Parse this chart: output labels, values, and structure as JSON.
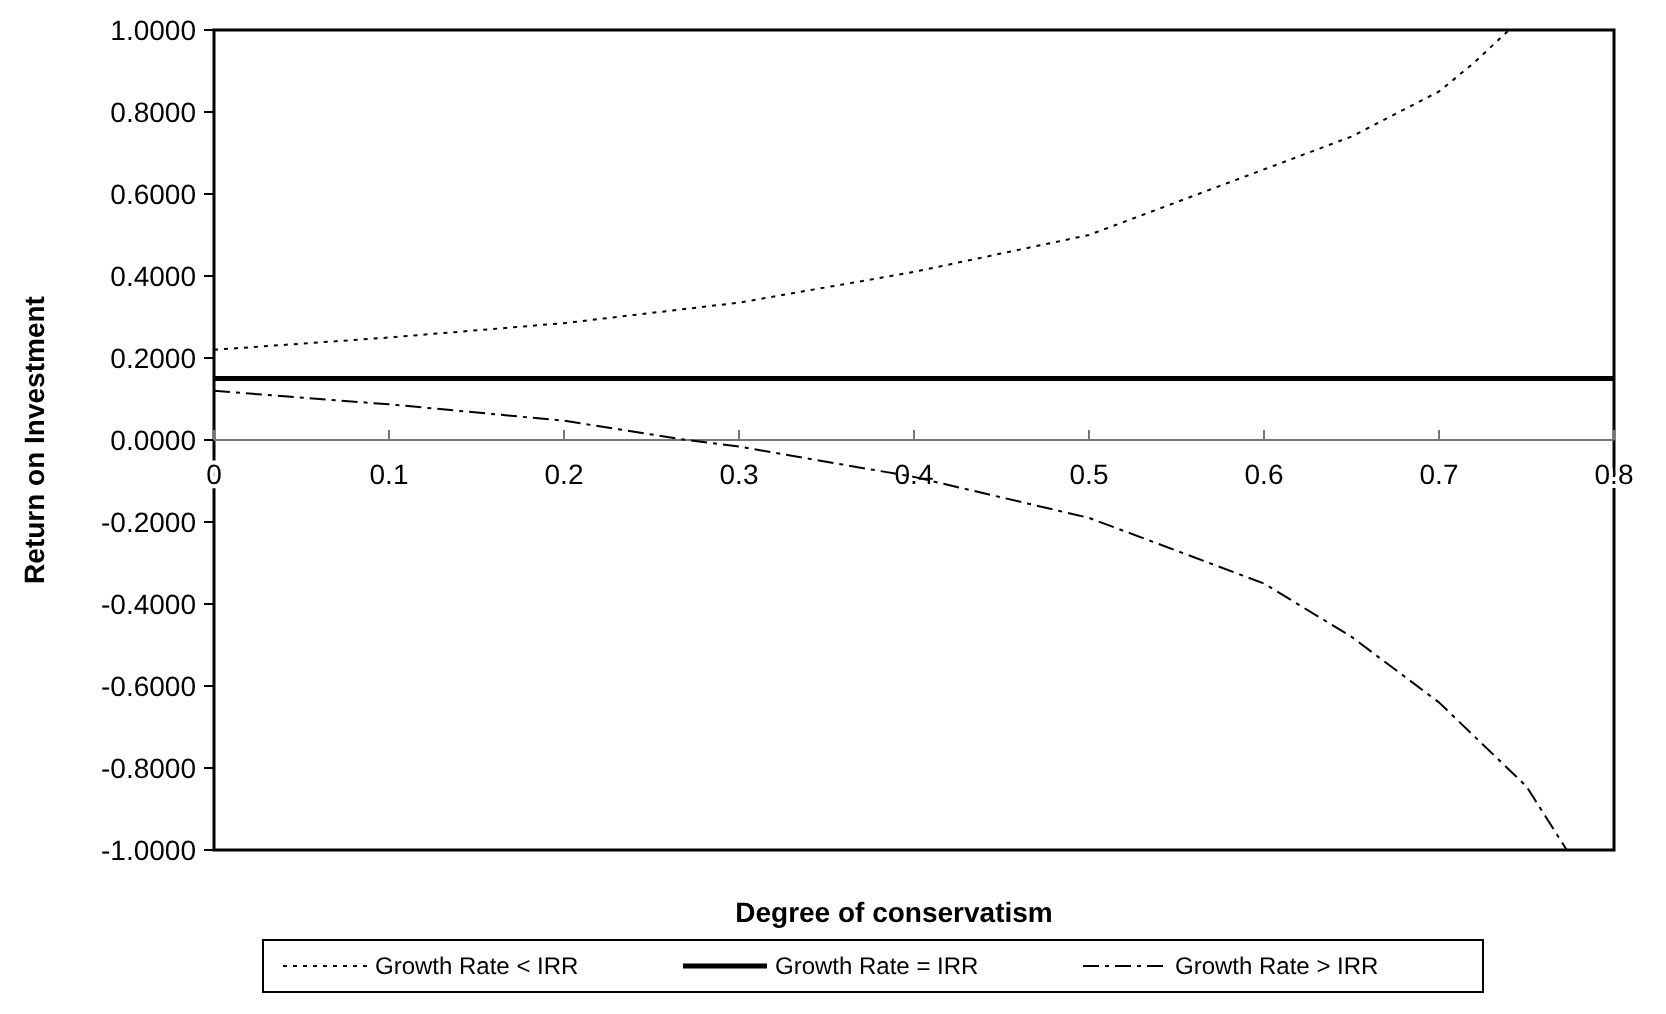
{
  "chart_data": {
    "type": "line",
    "xlabel": "Degree of conservatism",
    "ylabel": "Return on Investment",
    "xlim": [
      0,
      0.8
    ],
    "xticks": [
      0,
      0.1,
      0.2,
      0.3,
      0.4,
      0.5,
      0.6,
      0.7,
      0.8
    ],
    "ylim": [
      -1,
      1
    ],
    "yticks": [
      {
        "value": -1,
        "label": "-1.0000"
      },
      {
        "value": -0.8,
        "label": "-0.8000"
      },
      {
        "value": -0.6,
        "label": "-0.6000"
      },
      {
        "value": -0.4,
        "label": "-0.4000"
      },
      {
        "value": -0.2,
        "label": "-0.2000"
      },
      {
        "value": 0,
        "label": "0.0000"
      },
      {
        "value": 0.2,
        "label": "0.2000"
      },
      {
        "value": 0.4,
        "label": "0.4000"
      },
      {
        "value": 0.6,
        "label": "0.6000"
      },
      {
        "value": 0.8,
        "label": "0.8000"
      },
      {
        "value": 1,
        "label": "1.0000"
      }
    ],
    "grid": false,
    "legend": "bottom",
    "marker": "none",
    "series": [
      {
        "name": "Growth Rate < IRR",
        "color": "#000000",
        "line_style": "dotted",
        "x": [
          0,
          0.1,
          0.2,
          0.3,
          0.4,
          0.5,
          0.6,
          0.65,
          0.7,
          0.72,
          0.74
        ],
        "values": [
          0.22,
          0.25,
          0.285,
          0.335,
          0.41,
          0.5,
          0.66,
          0.74,
          0.85,
          0.92,
          1.0
        ]
      },
      {
        "name": "Growth Rate = IRR",
        "color": "#000000",
        "line_style": "solid",
        "x": [
          0,
          0.8
        ],
        "values": [
          0.15,
          0.15
        ]
      },
      {
        "name": "Growth Rate > IRR",
        "color": "#000000",
        "line_style": "dashdot",
        "x": [
          0,
          0.1,
          0.2,
          0.27,
          0.3,
          0.4,
          0.5,
          0.6,
          0.65,
          0.7,
          0.75,
          0.773
        ],
        "values": [
          0.12,
          0.087,
          0.047,
          0,
          -0.016,
          -0.09,
          -0.19,
          -0.35,
          -0.48,
          -0.64,
          -0.845,
          -1.0
        ]
      }
    ]
  }
}
